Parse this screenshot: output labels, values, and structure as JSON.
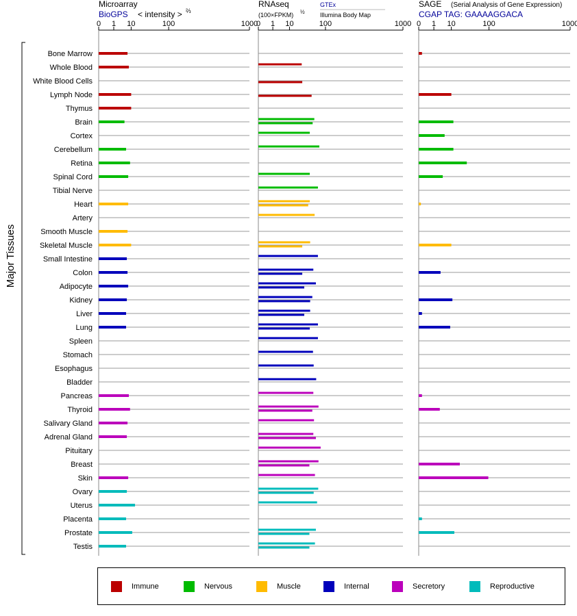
{
  "colors": {
    "Immune": "#bb0000",
    "Nervous": "#00bb00",
    "Muscle": "#ffbb00",
    "Internal": "#0000bb",
    "Secretory": "#bb00bb",
    "Reproductive": "#00bbbb"
  },
  "panels": {
    "microarray": {
      "title": "Microarray",
      "subtitle": "BioGPS",
      "axis_note": "< intensity >",
      "axis_note_exp": "⅔",
      "ticks": [
        "0",
        "1",
        "10",
        "100",
        "1000"
      ]
    },
    "rnaseq": {
      "title": "RNAseq",
      "subtitle": "(100×FPKM)",
      "subtitle_exp": "½",
      "legend_a": "GTEx",
      "legend_b": "Illumina Body Map",
      "ticks": [
        "0",
        "1",
        "10",
        "100",
        "1000"
      ]
    },
    "sage": {
      "title": "SAGE",
      "title_note": "(Serial Analysis of Gene Expression)",
      "subtitle": "CGAP TAG: GAAAAGGACA",
      "ticks": [
        "0",
        "1",
        "10",
        "100",
        "1000"
      ]
    }
  },
  "y_group_label": "Major Tissues",
  "legend": [
    {
      "name": "Immune",
      "key": "Immune"
    },
    {
      "name": "Nervous",
      "key": "Nervous"
    },
    {
      "name": "Muscle",
      "key": "Muscle"
    },
    {
      "name": "Internal",
      "key": "Internal"
    },
    {
      "name": "Secretory",
      "key": "Secretory"
    },
    {
      "name": "Reproductive",
      "key": "Reproductive"
    }
  ],
  "chart_data": {
    "type": "bar",
    "scale": "x^(1/3), ticks at 0,1,10,100,1000",
    "xlim": [
      0,
      1000
    ],
    "categories": [
      "Bone Marrow",
      "Whole Blood",
      "White Blood Cells",
      "Lymph Node",
      "Thymus",
      "Brain",
      "Cortex",
      "Cerebellum",
      "Retina",
      "Spinal Cord",
      "Tibial Nerve",
      "Heart",
      "Artery",
      "Smooth Muscle",
      "Skeletal Muscle",
      "Small Intestine",
      "Colon",
      "Adipocyte",
      "Kidney",
      "Liver",
      "Lung",
      "Spleen",
      "Stomach",
      "Esophagus",
      "Bladder",
      "Pancreas",
      "Thyroid",
      "Salivary Gland",
      "Adrenal Gland",
      "Pituitary",
      "Breast",
      "Skin",
      "Ovary",
      "Uterus",
      "Placenta",
      "Prostate",
      "Testis"
    ],
    "groups": [
      "Immune",
      "Immune",
      "Immune",
      "Immune",
      "Immune",
      "Nervous",
      "Nervous",
      "Nervous",
      "Nervous",
      "Nervous",
      "Nervous",
      "Muscle",
      "Muscle",
      "Muscle",
      "Muscle",
      "Internal",
      "Internal",
      "Internal",
      "Internal",
      "Internal",
      "Internal",
      "Internal",
      "Internal",
      "Internal",
      "Internal",
      "Secretory",
      "Secretory",
      "Secretory",
      "Secretory",
      "Secretory",
      "Secretory",
      "Secretory",
      "Reproductive",
      "Reproductive",
      "Reproductive",
      "Reproductive",
      "Reproductive"
    ],
    "microarray": [
      7,
      8,
      null,
      10,
      10,
      5,
      null,
      6,
      9,
      7.5,
      null,
      7.5,
      null,
      7,
      10,
      6.5,
      7,
      7.5,
      6.5,
      6,
      6,
      null,
      null,
      null,
      null,
      8,
      9,
      7,
      6.5,
      null,
      null,
      7.5,
      6.5,
      14,
      6,
      11,
      6
    ],
    "rnaseq_gtex": [
      null,
      27,
      null,
      null,
      null,
      58,
      45,
      75,
      null,
      45,
      70,
      45,
      59,
      null,
      46,
      70,
      55,
      63,
      52,
      46,
      70,
      70,
      54,
      56,
      64,
      55,
      72,
      57,
      55,
      80,
      72,
      60,
      71,
      67,
      null,
      63,
      60
    ],
    "rnaseq_ibm": [
      null,
      null,
      28,
      50,
      null,
      53,
      null,
      null,
      null,
      null,
      null,
      41,
      null,
      null,
      28,
      null,
      28,
      32,
      46,
      32,
      45,
      null,
      null,
      null,
      null,
      null,
      52,
      null,
      63,
      null,
      44,
      null,
      56,
      null,
      null,
      44,
      44
    ],
    "sage": [
      0.01,
      null,
      null,
      10,
      null,
      12,
      5,
      12,
      32,
      4,
      null,
      0.003,
      null,
      null,
      10,
      null,
      3,
      null,
      11,
      0.01,
      9,
      null,
      null,
      null,
      null,
      0.01,
      2.7,
      null,
      null,
      null,
      20,
      97,
      null,
      null,
      0.01,
      13,
      null
    ]
  }
}
